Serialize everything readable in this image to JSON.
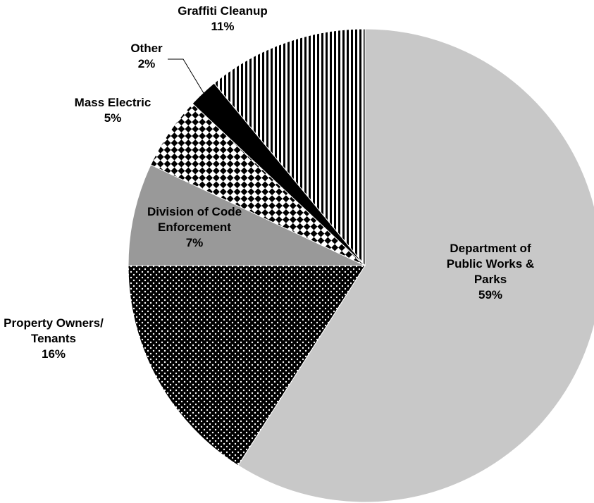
{
  "chart_data": {
    "type": "pie",
    "title": "",
    "start_angle_deg": 0,
    "direction": "clockwise",
    "slices": [
      {
        "label_lines": [
          "Department of",
          "Public Works &",
          "Parks"
        ],
        "value": 59,
        "value_label": "59%",
        "pattern": "solid-light-gray",
        "color": "#c8c8c8"
      },
      {
        "label_lines": [
          "Property Owners/",
          "Tenants"
        ],
        "value": 16,
        "value_label": "16%",
        "pattern": "white-dots-on-black",
        "color": "#000000"
      },
      {
        "label_lines": [
          "Division of Code",
          "Enforcement"
        ],
        "value": 7,
        "value_label": "7%",
        "pattern": "solid-medium-gray",
        "color": "#999999"
      },
      {
        "label_lines": [
          "Mass Electric"
        ],
        "value": 5,
        "value_label": "5%",
        "pattern": "checkerboard",
        "color": "#000000"
      },
      {
        "label_lines": [
          "Other"
        ],
        "value": 2,
        "value_label": "2%",
        "pattern": "solid-black",
        "color": "#000000"
      },
      {
        "label_lines": [
          "Graffiti Cleanup"
        ],
        "value": 11,
        "value_label": "11%",
        "pattern": "vertical-stripes",
        "color": "#000000"
      }
    ]
  }
}
